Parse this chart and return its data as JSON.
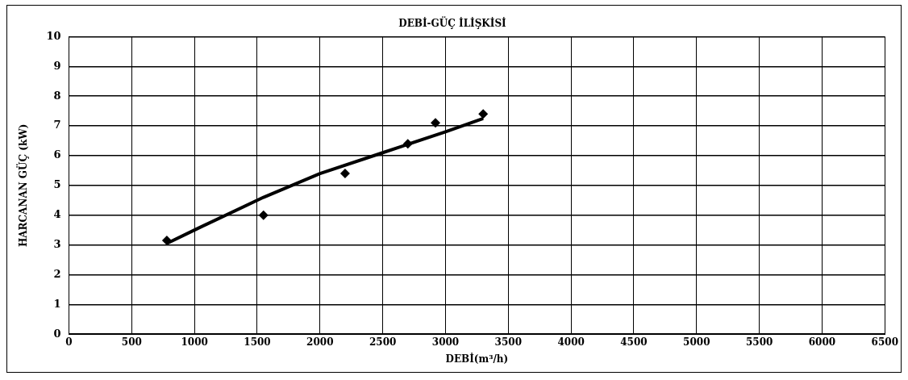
{
  "chart_data": {
    "type": "scatter",
    "title": "DEBİ-GÜÇ İLİŞKİSİ",
    "xlabel": "DEBİ(m³/h)",
    "ylabel": "HARCANAN GÜÇ (kW)",
    "xlim": [
      0,
      6500
    ],
    "xticks": [
      0,
      500,
      1000,
      1500,
      2000,
      2500,
      3000,
      3500,
      4000,
      4500,
      5000,
      5500,
      6000,
      6500
    ],
    "ylim": [
      0,
      10
    ],
    "yticks": [
      0,
      1,
      2,
      3,
      4,
      5,
      6,
      7,
      8,
      9,
      10
    ],
    "grid": true,
    "legend": false,
    "marker": "diamond",
    "series": [
      {
        "color": "#000000",
        "x": [
          780,
          1550,
          2200,
          2700,
          2920,
          3300
        ],
        "values": [
          3.15,
          4.0,
          5.4,
          6.4,
          7.1,
          7.4
        ]
      },
      {
        "type": "line",
        "color": "#000000",
        "marker": "none",
        "x": [
          780,
          1000,
          1550,
          2000,
          2500,
          3000,
          3300
        ],
        "values": [
          3.05,
          3.5,
          4.6,
          5.4,
          6.1,
          6.8,
          7.25
        ]
      }
    ]
  }
}
